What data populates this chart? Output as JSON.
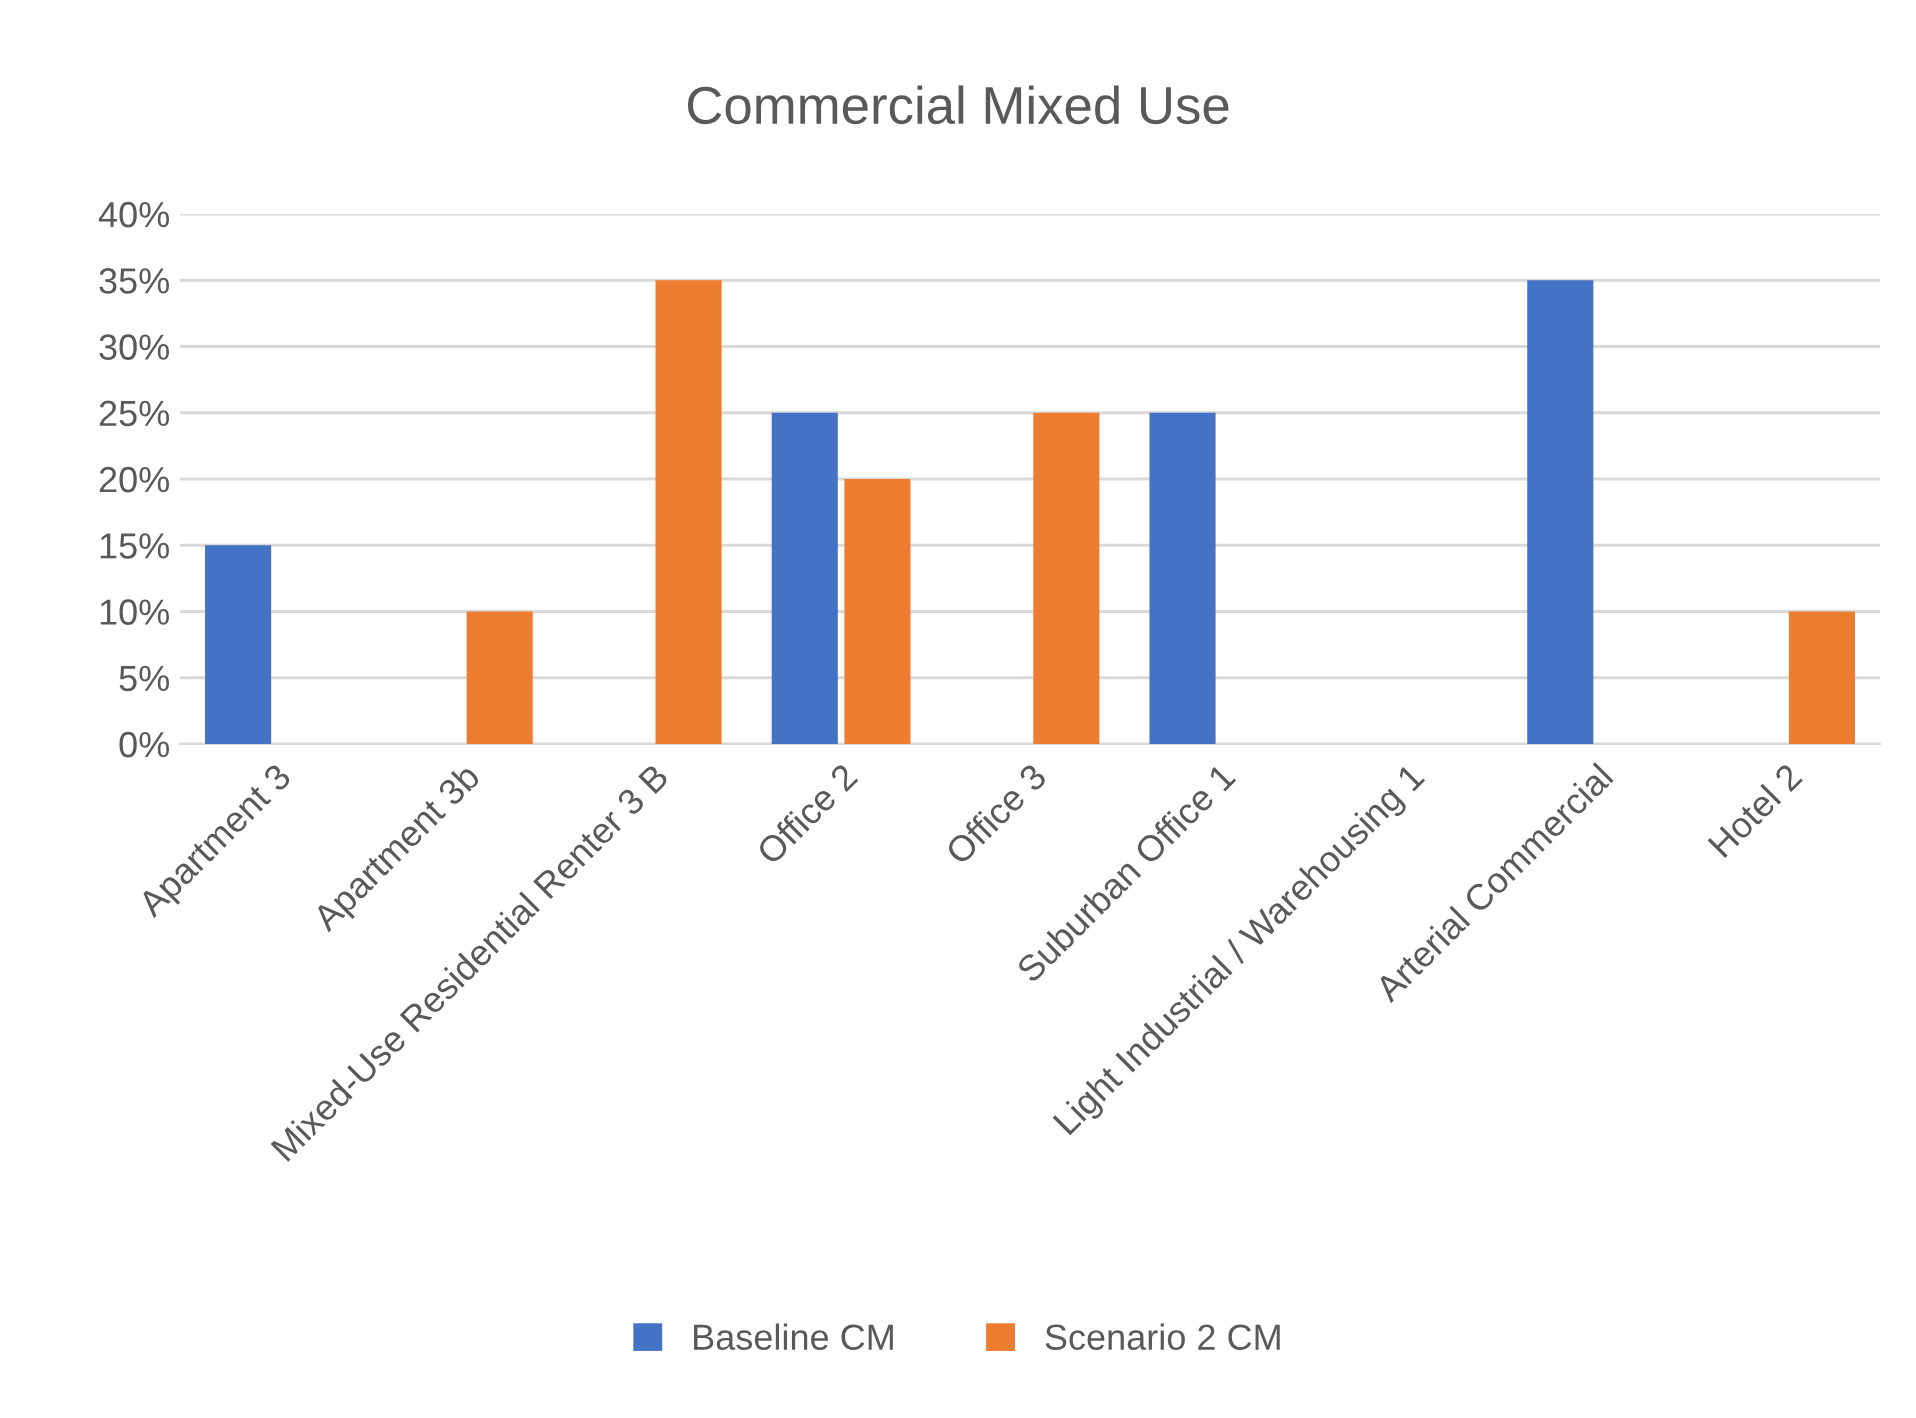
{
  "chart_data": {
    "type": "bar",
    "title": "Commercial Mixed Use",
    "categories": [
      "Apartment 3",
      "Apartment 3b",
      "Mixed-Use Residential Renter 3 B",
      "Office 2",
      "Office 3",
      "Suburban Office 1",
      "Light Industrial / Warehousing 1",
      "Arterial Commercial",
      "Hotel 2"
    ],
    "series": [
      {
        "name": "Baseline CM",
        "color": "#4472c4",
        "values": [
          15,
          0,
          0,
          25,
          0,
          25,
          0,
          35,
          0
        ]
      },
      {
        "name": "Scenario 2 CM",
        "color": "#ed7d31",
        "values": [
          0,
          10,
          35,
          20,
          25,
          0,
          0,
          0,
          10
        ]
      }
    ],
    "ylim": [
      0,
      40
    ],
    "yticks": [
      {
        "value": 0,
        "label": "0%"
      },
      {
        "value": 5,
        "label": "5%"
      },
      {
        "value": 10,
        "label": "10%"
      },
      {
        "value": 15,
        "label": "15%"
      },
      {
        "value": 20,
        "label": "20%"
      },
      {
        "value": 25,
        "label": "25%"
      },
      {
        "value": 30,
        "label": "30%"
      },
      {
        "value": 35,
        "label": "35%"
      },
      {
        "value": 40,
        "label": "40%"
      }
    ],
    "grid": "y",
    "legend": "bottom"
  }
}
